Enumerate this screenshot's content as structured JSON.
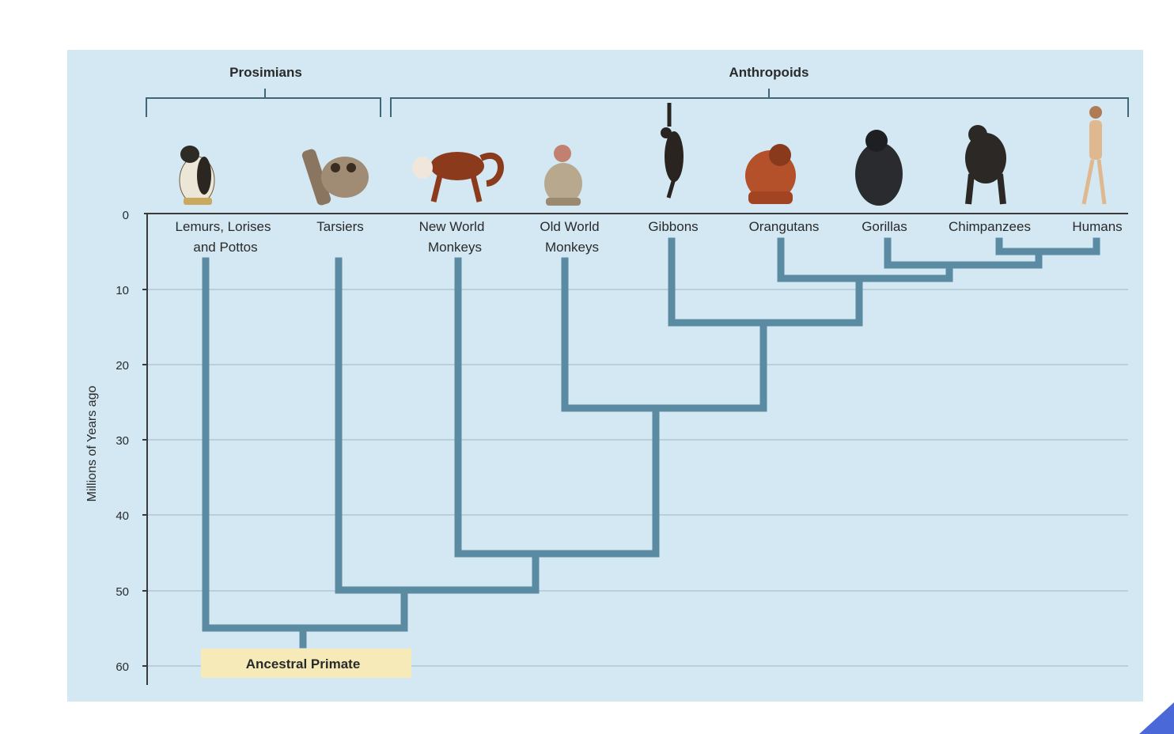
{
  "groups": {
    "prosimians": "Prosimians",
    "anthropoids": "Anthropoids"
  },
  "taxa": [
    {
      "id": "lemurs",
      "line1": "Lemurs, Lorises",
      "line2": "and Pottos",
      "icon": "lemur-icon"
    },
    {
      "id": "tarsiers",
      "line1": "Tarsiers",
      "line2": "",
      "icon": "tarsier-icon"
    },
    {
      "id": "nwm",
      "line1": "New World",
      "line2": "Monkeys",
      "icon": "new-world-monkey-icon"
    },
    {
      "id": "owm",
      "line1": "Old World",
      "line2": "Monkeys",
      "icon": "old-world-monkey-icon"
    },
    {
      "id": "gibbons",
      "line1": "Gibbons",
      "line2": "",
      "icon": "gibbon-icon"
    },
    {
      "id": "orangutans",
      "line1": "Orangutans",
      "line2": "",
      "icon": "orangutan-icon"
    },
    {
      "id": "gorillas",
      "line1": "Gorillas",
      "line2": "",
      "icon": "gorilla-icon"
    },
    {
      "id": "chimpanzees",
      "line1": "Chimpanzees",
      "line2": "",
      "icon": "chimpanzee-icon"
    },
    {
      "id": "humans",
      "line1": "Humans",
      "line2": "",
      "icon": "human-icon"
    }
  ],
  "axis": {
    "title": "Millions of Years ago",
    "ticks": [
      "0",
      "10",
      "20",
      "30",
      "40",
      "50",
      "60"
    ],
    "range": [
      0,
      60
    ]
  },
  "root_label": "Ancestral Primate",
  "divergences_mya": {
    "humans_chimpanzees": 5,
    "with_gorillas": 7,
    "with_orangutans": 9,
    "with_gibbons": 15,
    "with_old_world_monkeys": 26,
    "with_new_world_monkeys": 45,
    "with_tarsiers": 50,
    "with_lemurs": 55
  },
  "colors": {
    "panel": "#d3e8f2",
    "branch": "#5a8ba3",
    "bracket": "#3e6878",
    "ancestral_box": "#f5eab8"
  }
}
